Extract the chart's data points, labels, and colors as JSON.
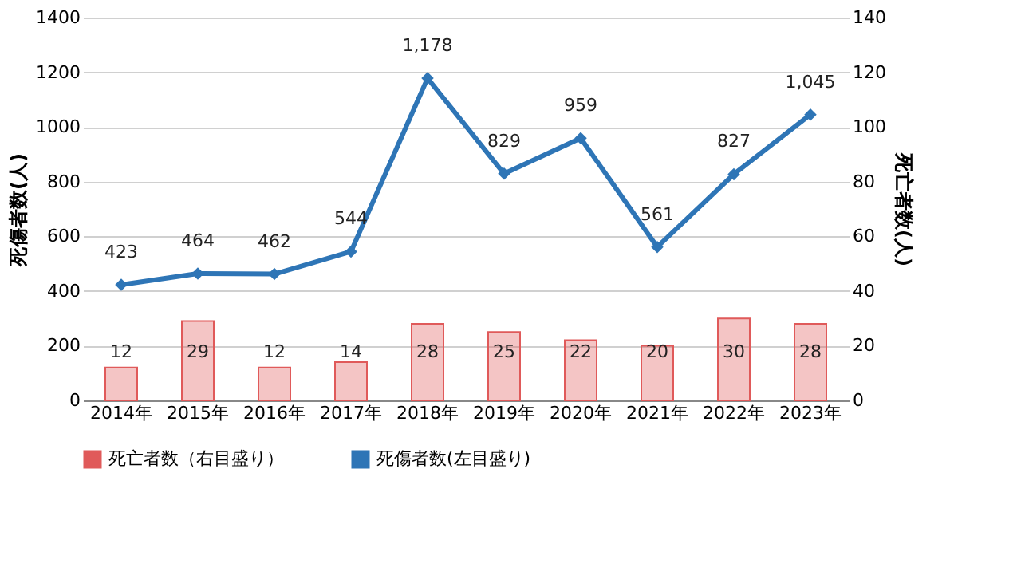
{
  "chart_data": {
    "type": "bar",
    "ylabel": "死傷者数(人)",
    "y2label": "死亡者数(人)",
    "categories": [
      "2014年",
      "2015年",
      "2016年",
      "2017年",
      "2018年",
      "2019年",
      "2020年",
      "2021年",
      "2022年",
      "2023年"
    ],
    "series": [
      {
        "name": "死亡者数（右目盛り）",
        "axis": "y2",
        "color": "#e05a5a",
        "values": [
          12,
          29,
          12,
          14,
          28,
          25,
          22,
          20,
          30,
          28
        ],
        "value_labels": [
          "12",
          "29",
          "12",
          "14",
          "28",
          "25",
          "22",
          "20",
          "30",
          "28"
        ]
      },
      {
        "name": "死傷者数(左目盛り)",
        "type": "line",
        "axis": "y",
        "color": "#2e75b6",
        "marker": "diamond",
        "values": [
          423,
          464,
          462,
          544,
          1178,
          829,
          959,
          561,
          827,
          1045
        ],
        "value_labels": [
          "423",
          "464",
          "462",
          "544",
          "1,178",
          "829",
          "959",
          "561",
          "827",
          "1,045"
        ]
      }
    ],
    "ylim": [
      0,
      1400
    ],
    "yticks": [
      0,
      200,
      400,
      600,
      800,
      1000,
      1200,
      1400
    ],
    "y2lim": [
      0,
      140
    ],
    "y2ticks": [
      0,
      20,
      40,
      60,
      80,
      100,
      120,
      140
    ],
    "grid": "y",
    "legend": "bottom"
  }
}
